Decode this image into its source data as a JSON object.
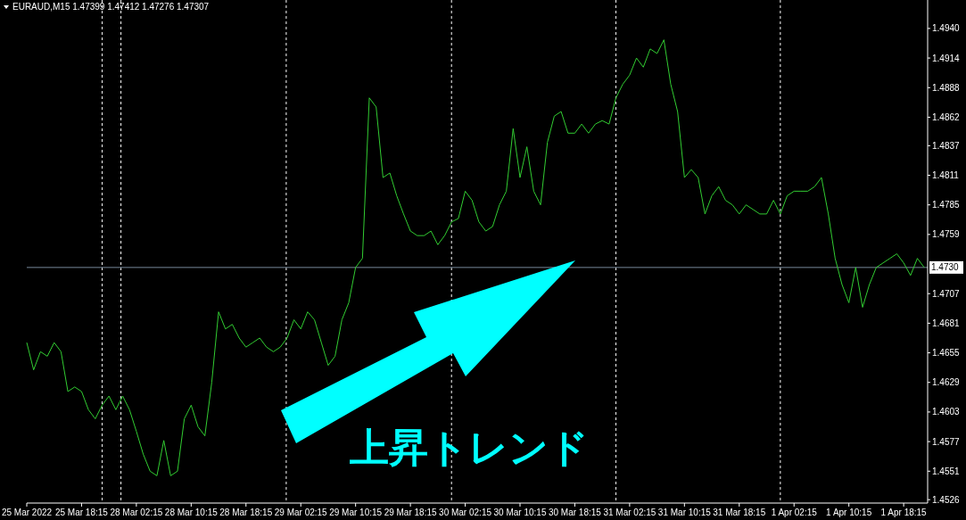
{
  "chart_data": {
    "type": "line",
    "title": "EURAUD,M15  1.47399 1.47412 1.47276 1.47307",
    "categories": [
      "25 Mar 2022",
      null,
      null,
      null,
      null,
      null,
      null,
      null,
      "25 Mar 18:15",
      null,
      null,
      null,
      null,
      null,
      null,
      null,
      "28 Mar 02:15",
      null,
      null,
      null,
      null,
      null,
      null,
      null,
      "28 Mar 10:15",
      null,
      null,
      null,
      null,
      null,
      null,
      null,
      "28 Mar 18:15",
      null,
      null,
      null,
      null,
      null,
      null,
      null,
      "29 Mar 02:15",
      null,
      null,
      null,
      null,
      null,
      null,
      null,
      "29 Mar 10:15",
      null,
      null,
      null,
      null,
      null,
      null,
      null,
      "29 Mar 18:15",
      null,
      null,
      null,
      null,
      null,
      null,
      null,
      "30 Mar 02:15",
      null,
      null,
      null,
      null,
      null,
      null,
      null,
      "30 Mar 10:15",
      null,
      null,
      null,
      null,
      null,
      null,
      null,
      "30 Mar 18:15",
      null,
      null,
      null,
      null,
      null,
      null,
      null,
      "31 Mar 02:15",
      null,
      null,
      null,
      null,
      null,
      null,
      null,
      "31 Mar 10:15",
      null,
      null,
      null,
      null,
      null,
      null,
      null,
      "31 Mar 18:15",
      null,
      null,
      null,
      null,
      null,
      null,
      null,
      "1 Apr 02:15",
      null,
      null,
      null,
      null,
      null,
      null,
      null,
      "1 Apr 10:15",
      null,
      null,
      null,
      null,
      null,
      null,
      null,
      "1 Apr 18:15",
      null,
      null,
      null
    ],
    "series": [
      {
        "color": "#32cd32",
        "values": [
          1.4664,
          1.464,
          1.4656,
          1.4652,
          1.4664,
          1.4656,
          1.4621,
          1.4625,
          1.4621,
          1.4605,
          1.4597,
          1.4609,
          1.4617,
          1.4605,
          1.4617,
          1.4605,
          1.4586,
          1.4566,
          1.4551,
          1.4547,
          1.4578,
          1.4547,
          1.4551,
          1.4597,
          1.4609,
          1.459,
          1.4582,
          1.4629,
          1.4691,
          1.4676,
          1.468,
          1.4668,
          1.466,
          1.4664,
          1.4668,
          1.466,
          1.4656,
          1.466,
          1.4668,
          1.4684,
          1.4676,
          1.4691,
          1.4684,
          1.4664,
          1.4644,
          1.4652,
          1.4684,
          1.4699,
          1.473,
          1.4738,
          1.4879,
          1.4871,
          1.4809,
          1.4813,
          1.4793,
          1.4777,
          1.4762,
          1.4758,
          1.4758,
          1.4762,
          1.475,
          1.4758,
          1.477,
          1.4773,
          1.4797,
          1.4789,
          1.477,
          1.4762,
          1.4766,
          1.4785,
          1.4797,
          1.4852,
          1.4809,
          1.4836,
          1.4797,
          1.4785,
          1.484,
          1.4863,
          1.4867,
          1.4848,
          1.4848,
          1.4856,
          1.4848,
          1.4856,
          1.4859,
          1.4856,
          1.4879,
          1.4891,
          1.4899,
          1.4914,
          1.4906,
          1.4922,
          1.4918,
          1.493,
          1.4891,
          1.4867,
          1.4809,
          1.4816,
          1.4809,
          1.4777,
          1.4793,
          1.4801,
          1.4789,
          1.4785,
          1.4777,
          1.4785,
          1.4781,
          1.4777,
          1.4777,
          1.4789,
          1.4777,
          1.4793,
          1.4797,
          1.4797,
          1.4797,
          1.4801,
          1.4809,
          1.4777,
          1.4738,
          1.4715,
          1.4699,
          1.473,
          1.4695,
          1.4715,
          1.473,
          1.4734,
          1.4738,
          1.4742,
          1.4734,
          1.4723,
          1.4738,
          1.473
        ]
      }
    ],
    "ylim": [
      1.4523,
      1.4965
    ],
    "yticks": [
      1.4526,
      1.4551,
      1.4577,
      1.4603,
      1.4629,
      1.4655,
      1.4681,
      1.4707,
      1.4759,
      1.4785,
      1.4811,
      1.4837,
      1.4862,
      1.4888,
      1.4914,
      {
        "value": 1.494,
        "label": "1.4940"
      }
    ],
    "ref_lines": [
      {
        "axis": "y",
        "value": 1.473,
        "label": "1.4730",
        "color": "#778899",
        "line_style": "solid"
      }
    ],
    "annotations": [
      "上昇トレンド"
    ]
  }
}
